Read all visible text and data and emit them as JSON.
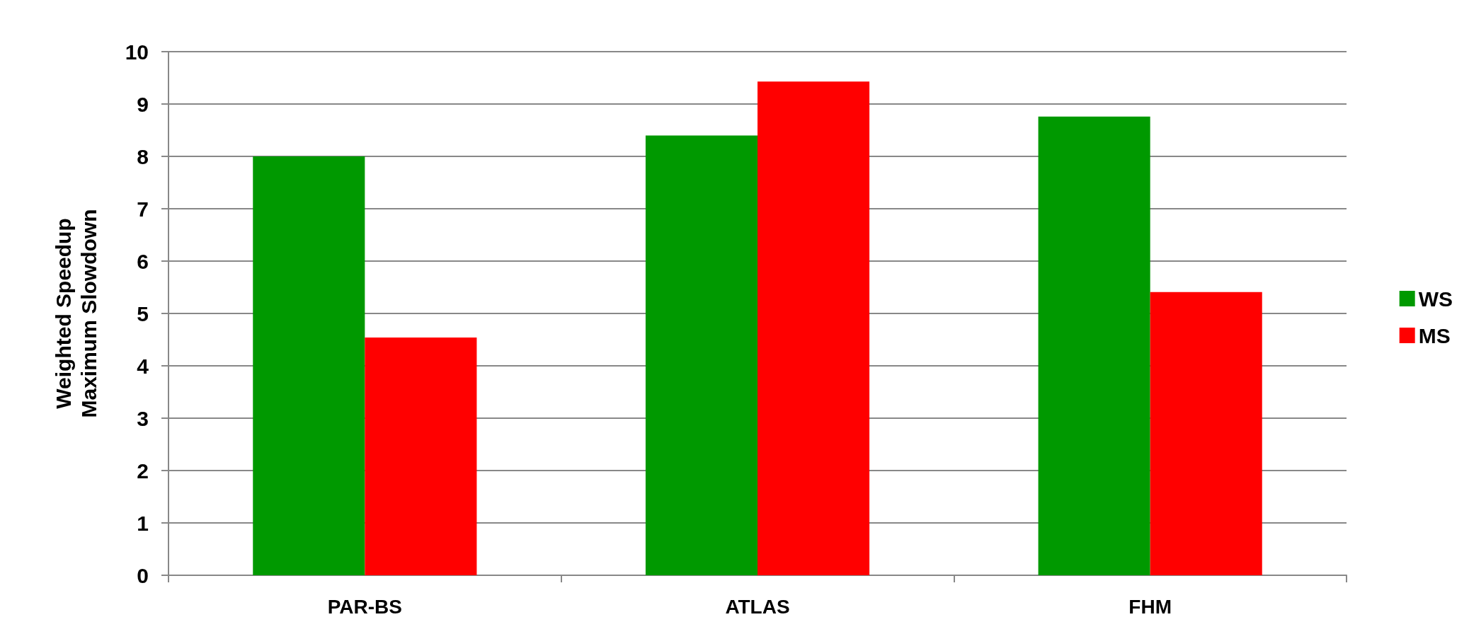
{
  "chart_data": {
    "type": "bar",
    "ylabel": "Weighted Speedup\nMaximum Slowdown",
    "categories": [
      "PAR-BS",
      "ATLAS",
      "FHM"
    ],
    "series": [
      {
        "name": "WS",
        "color": "#009900",
        "values": [
          8.0,
          8.4,
          8.76
        ]
      },
      {
        "name": "MS",
        "color": "#ff0000",
        "values": [
          4.54,
          9.43,
          5.41
        ]
      }
    ],
    "ylim": [
      0,
      10
    ],
    "yticks": [
      0,
      1,
      2,
      3,
      4,
      5,
      6,
      7,
      8,
      9,
      10
    ],
    "grid": "y",
    "legend": "right"
  }
}
